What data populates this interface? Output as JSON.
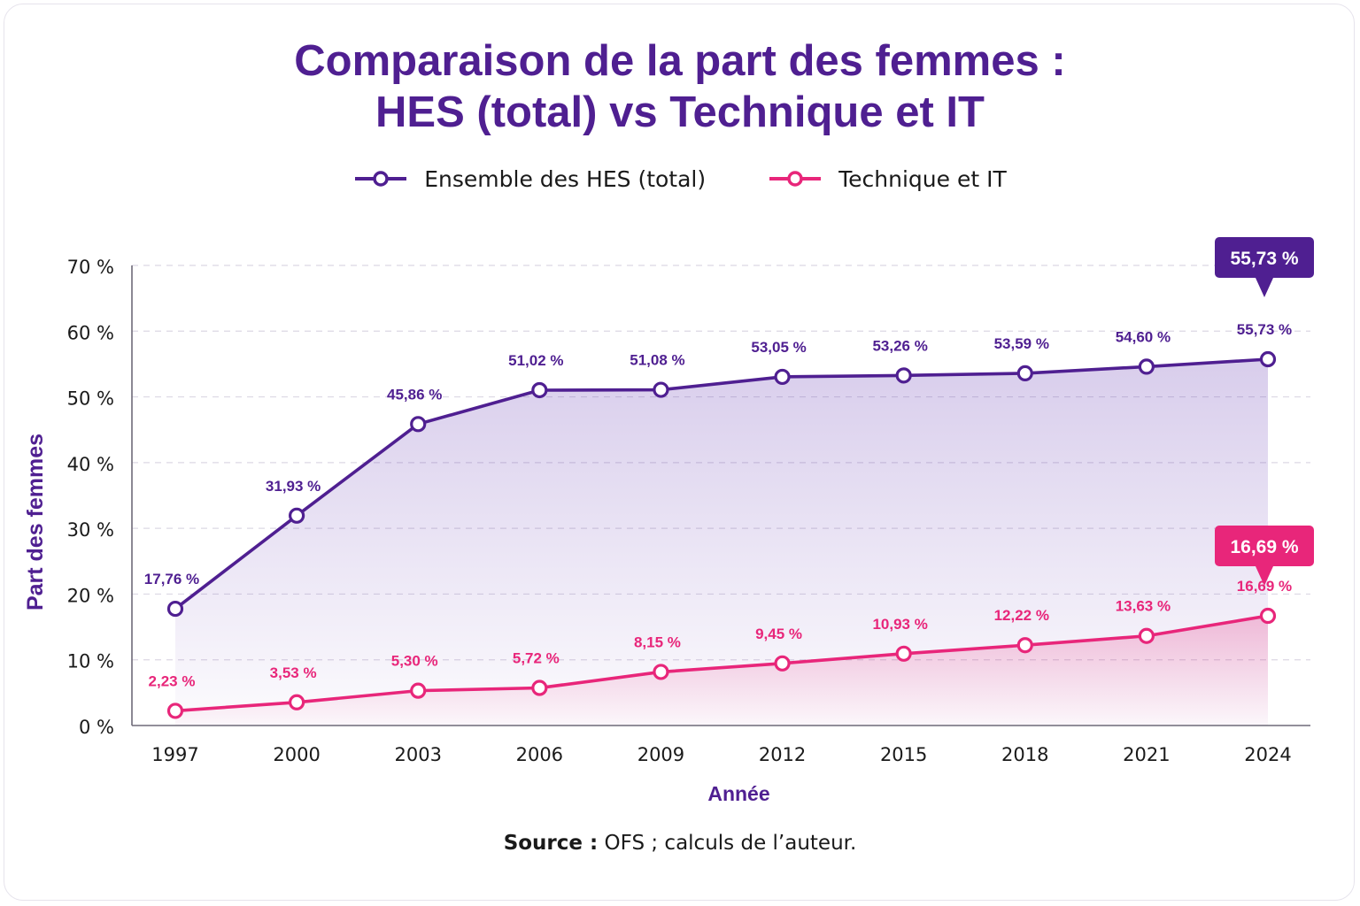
{
  "chart_data": {
    "type": "line",
    "title_line1": "Comparaison de la part des femmes :",
    "title_line2": "HES (total) vs Technique et IT",
    "xlabel": "Année",
    "ylabel": "Part des femmes",
    "x": [
      "1997",
      "2000",
      "2003",
      "2006",
      "2009",
      "2012",
      "2015",
      "2018",
      "2021",
      "2024"
    ],
    "ylim": [
      0,
      70
    ],
    "yticks": [
      0,
      10,
      20,
      30,
      40,
      50,
      60,
      70
    ],
    "ytick_labels": [
      "0 %",
      "10 %",
      "20 %",
      "30 %",
      "40 %",
      "50 %",
      "60 %",
      "70 %"
    ],
    "grid": "horizontal-dashed",
    "legend_position": "top-center",
    "series": [
      {
        "name": "Ensemble des HES (total)",
        "color": "#4f1f91",
        "values": [
          17.76,
          31.93,
          45.86,
          51.02,
          51.08,
          53.05,
          53.26,
          53.59,
          54.6,
          55.73
        ],
        "labels": [
          "17,76 %",
          "31,93 %",
          "45,86 %",
          "51,02 %",
          "51,08 %",
          "53,05 %",
          "53,26 %",
          "53,59 %",
          "54,60 %",
          "55,73 %"
        ],
        "callout": "55,73 %"
      },
      {
        "name": "Technique et IT",
        "color": "#e8267a",
        "values": [
          2.23,
          3.53,
          5.3,
          5.72,
          8.15,
          9.45,
          10.93,
          12.22,
          13.63,
          16.69
        ],
        "labels": [
          "2,23 %",
          "3,53 %",
          "5,30 %",
          "5,72 %",
          "8,15 %",
          "9,45 %",
          "10,93 %",
          "12,22 %",
          "13,63 %",
          "16,69 %"
        ],
        "callout": "16,69 %"
      }
    ]
  },
  "source": {
    "label": "Source :",
    "text": " OFS ; calculs de l’auteur."
  }
}
